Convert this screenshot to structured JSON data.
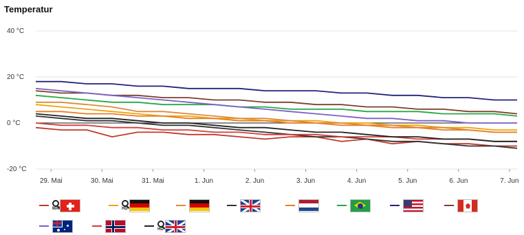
{
  "chart_data": {
    "type": "line",
    "title": "Temperatur",
    "xlabel": "",
    "ylabel": "",
    "ylim": [
      -20,
      40
    ],
    "yticks": [
      "40 °C",
      "20 °C",
      "0 °C",
      "-20 °C"
    ],
    "ytick_values": [
      40,
      20,
      0,
      -20
    ],
    "xlim": [
      0,
      9.45
    ],
    "xticks": [
      "29. Mai",
      "30. Mai",
      "31. Mai",
      "1. Jun",
      "2. Jun",
      "3. Jun",
      "4. Jun",
      "5. Jun",
      "6. Jun",
      "7. Jun"
    ],
    "xtick_values": [
      0.3,
      1.3,
      2.3,
      3.3,
      4.3,
      5.3,
      6.3,
      7.3,
      8.3,
      9.3
    ],
    "grid": true,
    "legend_position": "bottom",
    "series": [
      {
        "color": "#c0392b",
        "icon": "switzerland-flag-icon",
        "badge": "zoom-icon",
        "badge_text": "MAPS",
        "x": [
          0.0,
          0.5,
          1.0,
          1.5,
          2.0,
          2.5,
          3.0,
          3.5,
          4.0,
          4.5,
          5.0,
          5.5,
          6.0,
          6.5,
          7.0,
          7.5,
          8.0,
          8.5,
          9.0,
          9.45
        ],
        "values": [
          -2,
          -3,
          -3,
          -6,
          -4,
          -4,
          -5,
          -5,
          -6,
          -7,
          -6,
          -6,
          -8,
          -7,
          -9,
          -8,
          -9,
          -9,
          -10,
          -10
        ]
      },
      {
        "color": "#f0a30a",
        "icon": "germany-flag-icon",
        "badge": "zoom-icon",
        "badge_text": "HD",
        "x": [
          0.0,
          0.5,
          1.0,
          1.5,
          2.0,
          2.5,
          3.0,
          3.5,
          4.0,
          4.5,
          5.0,
          5.5,
          6.0,
          6.5,
          7.0,
          7.5,
          8.0,
          8.5,
          9.0,
          9.45
        ],
        "values": [
          8,
          7,
          6,
          5,
          4,
          3,
          3,
          2,
          2,
          1,
          1,
          1,
          0,
          0,
          -1,
          -1,
          -2,
          -2,
          -3,
          -3
        ]
      },
      {
        "color": "#d98b3a",
        "icon": "germany-flag-icon",
        "x": [
          0.0,
          0.5,
          1.0,
          1.5,
          2.0,
          2.5,
          3.0,
          3.5,
          4.0,
          4.5,
          5.0,
          5.5,
          6.0,
          6.5,
          7.0,
          7.5,
          8.0,
          8.5,
          9.0,
          9.45
        ],
        "values": [
          9,
          9,
          8,
          7,
          5,
          5,
          4,
          3,
          2,
          2,
          1,
          0,
          0,
          -1,
          -1,
          -2,
          -2,
          -3,
          -4,
          -4
        ]
      },
      {
        "color": "#333333",
        "icon": "united-kingdom-flag-icon",
        "x": [
          0.0,
          0.5,
          1.0,
          1.5,
          2.0,
          2.5,
          3.0,
          3.5,
          4.0,
          4.5,
          5.0,
          5.5,
          6.0,
          6.5,
          7.0,
          7.5,
          8.0,
          8.5,
          9.0,
          9.45
        ],
        "values": [
          3,
          2,
          1,
          1,
          0,
          -1,
          -1,
          -2,
          -3,
          -4,
          -5,
          -6,
          -6,
          -7,
          -8,
          -8,
          -9,
          -10,
          -10,
          -11
        ]
      },
      {
        "color": "#e67e22",
        "icon": "netherlands-flag-icon",
        "x": [
          0.0,
          0.5,
          1.0,
          1.5,
          2.0,
          2.5,
          3.0,
          3.5,
          4.0,
          4.5,
          5.0,
          5.5,
          6.0,
          6.5,
          7.0,
          7.5,
          8.0,
          8.5,
          9.0,
          9.45
        ],
        "values": [
          5,
          5,
          4,
          4,
          3,
          3,
          2,
          2,
          1,
          1,
          0,
          0,
          -1,
          -1,
          -2,
          -2,
          -3,
          -3,
          -4,
          -4
        ]
      },
      {
        "color": "#27a745",
        "icon": "brazil-flag-icon",
        "x": [
          0.0,
          0.5,
          1.0,
          1.5,
          2.0,
          2.5,
          3.0,
          3.5,
          4.0,
          4.5,
          5.0,
          5.5,
          6.0,
          6.5,
          7.0,
          7.5,
          8.0,
          8.5,
          9.0,
          9.45
        ],
        "values": [
          12,
          11,
          10,
          9,
          9,
          8,
          8,
          8,
          7,
          7,
          6,
          6,
          6,
          5,
          5,
          5,
          4,
          4,
          4,
          3
        ]
      },
      {
        "color": "#22227a",
        "icon": "usa-flag-icon",
        "x": [
          0.0,
          0.5,
          1.0,
          1.5,
          2.0,
          2.5,
          3.0,
          3.5,
          4.0,
          4.5,
          5.0,
          5.5,
          6.0,
          6.5,
          7.0,
          7.5,
          8.0,
          8.5,
          9.0,
          9.45
        ],
        "values": [
          18,
          18,
          17,
          17,
          16,
          16,
          15,
          15,
          15,
          14,
          14,
          14,
          13,
          13,
          12,
          12,
          11,
          11,
          10,
          10
        ]
      },
      {
        "color": "#7b3f2a",
        "icon": "canada-flag-icon",
        "x": [
          0.0,
          0.5,
          1.0,
          1.5,
          2.0,
          2.5,
          3.0,
          3.5,
          4.0,
          4.5,
          5.0,
          5.5,
          6.0,
          6.5,
          7.0,
          7.5,
          8.0,
          8.5,
          9.0,
          9.45
        ],
        "values": [
          14,
          13,
          13,
          12,
          12,
          11,
          11,
          10,
          10,
          9,
          9,
          8,
          8,
          7,
          7,
          6,
          6,
          5,
          5,
          4
        ]
      },
      {
        "color": "#7d5fc9",
        "icon": "australia-flag-icon",
        "x": [
          0.0,
          0.5,
          1.0,
          1.5,
          2.0,
          2.5,
          3.0,
          3.5,
          4.0,
          4.5,
          5.0,
          5.5,
          6.0,
          6.5,
          7.0,
          7.5,
          8.0,
          8.5,
          9.0,
          9.45
        ],
        "values": [
          15,
          14,
          13,
          12,
          11,
          10,
          9,
          8,
          7,
          6,
          5,
          4,
          3,
          2,
          2,
          1,
          1,
          0,
          0,
          0
        ]
      },
      {
        "color": "#d43b3b",
        "icon": "norway-flag-icon",
        "x": [
          0.0,
          0.5,
          1.0,
          1.5,
          2.0,
          2.5,
          3.0,
          3.5,
          4.0,
          4.5,
          5.0,
          5.5,
          6.0,
          6.5,
          7.0,
          7.5,
          8.0,
          8.5,
          9.0,
          9.45
        ],
        "values": [
          0,
          -1,
          -1,
          -2,
          -2,
          -3,
          -3,
          -4,
          -4,
          -5,
          -5,
          -5,
          -6,
          -6,
          -6,
          -7,
          -7,
          -7,
          -8,
          -8
        ]
      },
      {
        "color": "#222222",
        "icon": "united-kingdom-flag-icon",
        "badge": "zoom-icon",
        "badge_text": "HD",
        "x": [
          0.0,
          0.5,
          1.0,
          1.5,
          2.0,
          2.5,
          3.0,
          3.5,
          4.0,
          4.5,
          5.0,
          5.5,
          6.0,
          6.5,
          7.0,
          7.5,
          8.0,
          8.5,
          9.0,
          9.45
        ],
        "values": [
          4,
          3,
          2,
          2,
          1,
          0,
          0,
          -1,
          -2,
          -2,
          -3,
          -4,
          -4,
          -5,
          -6,
          -6,
          -7,
          -7,
          -8,
          -8
        ]
      }
    ]
  }
}
